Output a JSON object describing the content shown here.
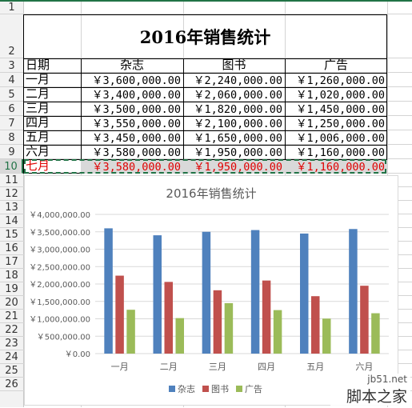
{
  "sheet": {
    "row_numbers": [
      "1",
      "2",
      "3",
      "4",
      "5",
      "6",
      "7",
      "8",
      "9",
      "10",
      "11",
      "12",
      "13",
      "14",
      "15",
      "16",
      "17",
      "18",
      "19",
      "20",
      "21",
      "22",
      "23",
      "24",
      "25",
      "26"
    ],
    "title": "2016年销售统计",
    "headers": [
      "日期",
      "杂志",
      "图书",
      "广告"
    ],
    "rows": [
      [
        "一月",
        "￥3,600,000.00",
        "￥2,240,000.00",
        "￥1,260,000.00"
      ],
      [
        "二月",
        "￥3,400,000.00",
        "￥2,060,000.00",
        "￥1,020,000.00"
      ],
      [
        "三月",
        "￥3,500,000.00",
        "￥1,820,000.00",
        "￥1,450,000.00"
      ],
      [
        "四月",
        "￥3,550,000.00",
        "￥2,100,000.00",
        "￥1,250,000.00"
      ],
      [
        "五月",
        "￥3,450,000.00",
        "￥1,650,000.00",
        "￥1,006,000.00"
      ],
      [
        "六月",
        "￥3,580,000.00",
        "￥1,950,000.00",
        "￥1,160,000.00"
      ],
      [
        "七月",
        "￥3,580,000.00",
        "￥1,950,000.00",
        "￥1,160,000.00"
      ]
    ],
    "selected_row_color": "#e00000",
    "selection_color": "#217346"
  },
  "chart_data": {
    "type": "bar",
    "title": "2016年销售统计",
    "categories": [
      "一月",
      "二月",
      "三月",
      "四月",
      "五月",
      "六月"
    ],
    "series": [
      {
        "name": "杂志",
        "color": "#4f81bd",
        "values": [
          3600000,
          3400000,
          3500000,
          3550000,
          3450000,
          3580000
        ]
      },
      {
        "name": "图书",
        "color": "#c0504d",
        "values": [
          2240000,
          2060000,
          1820000,
          2100000,
          1650000,
          1950000
        ]
      },
      {
        "name": "广告",
        "color": "#9bbb59",
        "values": [
          1260000,
          1020000,
          1450000,
          1250000,
          1006000,
          1160000
        ]
      }
    ],
    "ylim": [
      0,
      4000000
    ],
    "ytick_labels": [
      "￥0.00",
      "￥500,000.00",
      "￥1,000,000.00",
      "￥1,500,000.00",
      "￥2,000,000.00",
      "￥2,500,000.00",
      "￥3,000,000.00",
      "￥3,500,000.00",
      "￥4,000,000.00"
    ],
    "legend_position": "bottom",
    "grid": true
  },
  "watermark": {
    "line1": "jb51.net",
    "line2": "脚本之家"
  }
}
